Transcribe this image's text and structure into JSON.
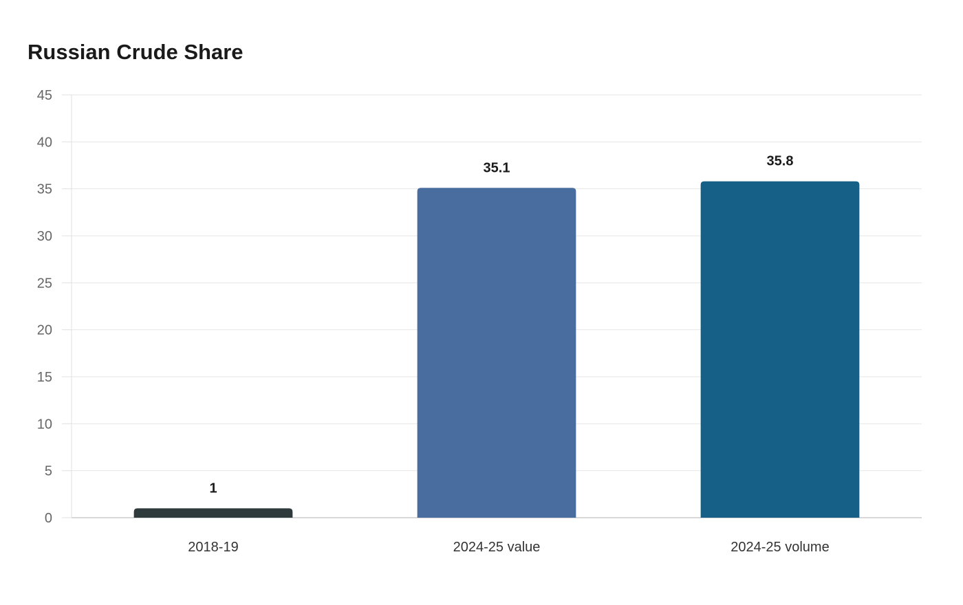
{
  "chart_data": {
    "type": "bar",
    "title": "Russian Crude Share",
    "categories": [
      "2018-19",
      "2024-25 value",
      "2024-25 volume"
    ],
    "values": [
      1,
      35.1,
      35.8
    ],
    "data_labels": [
      "1",
      "35.1",
      "35.8"
    ],
    "colors": [
      "#2f3a3c",
      "#4a6da0",
      "#165f86"
    ],
    "xlabel": "",
    "ylabel": "",
    "ylim": [
      0,
      45
    ],
    "yticks": [
      0,
      5,
      10,
      15,
      20,
      25,
      30,
      35,
      40,
      45
    ],
    "grid": true,
    "legend": "none"
  }
}
